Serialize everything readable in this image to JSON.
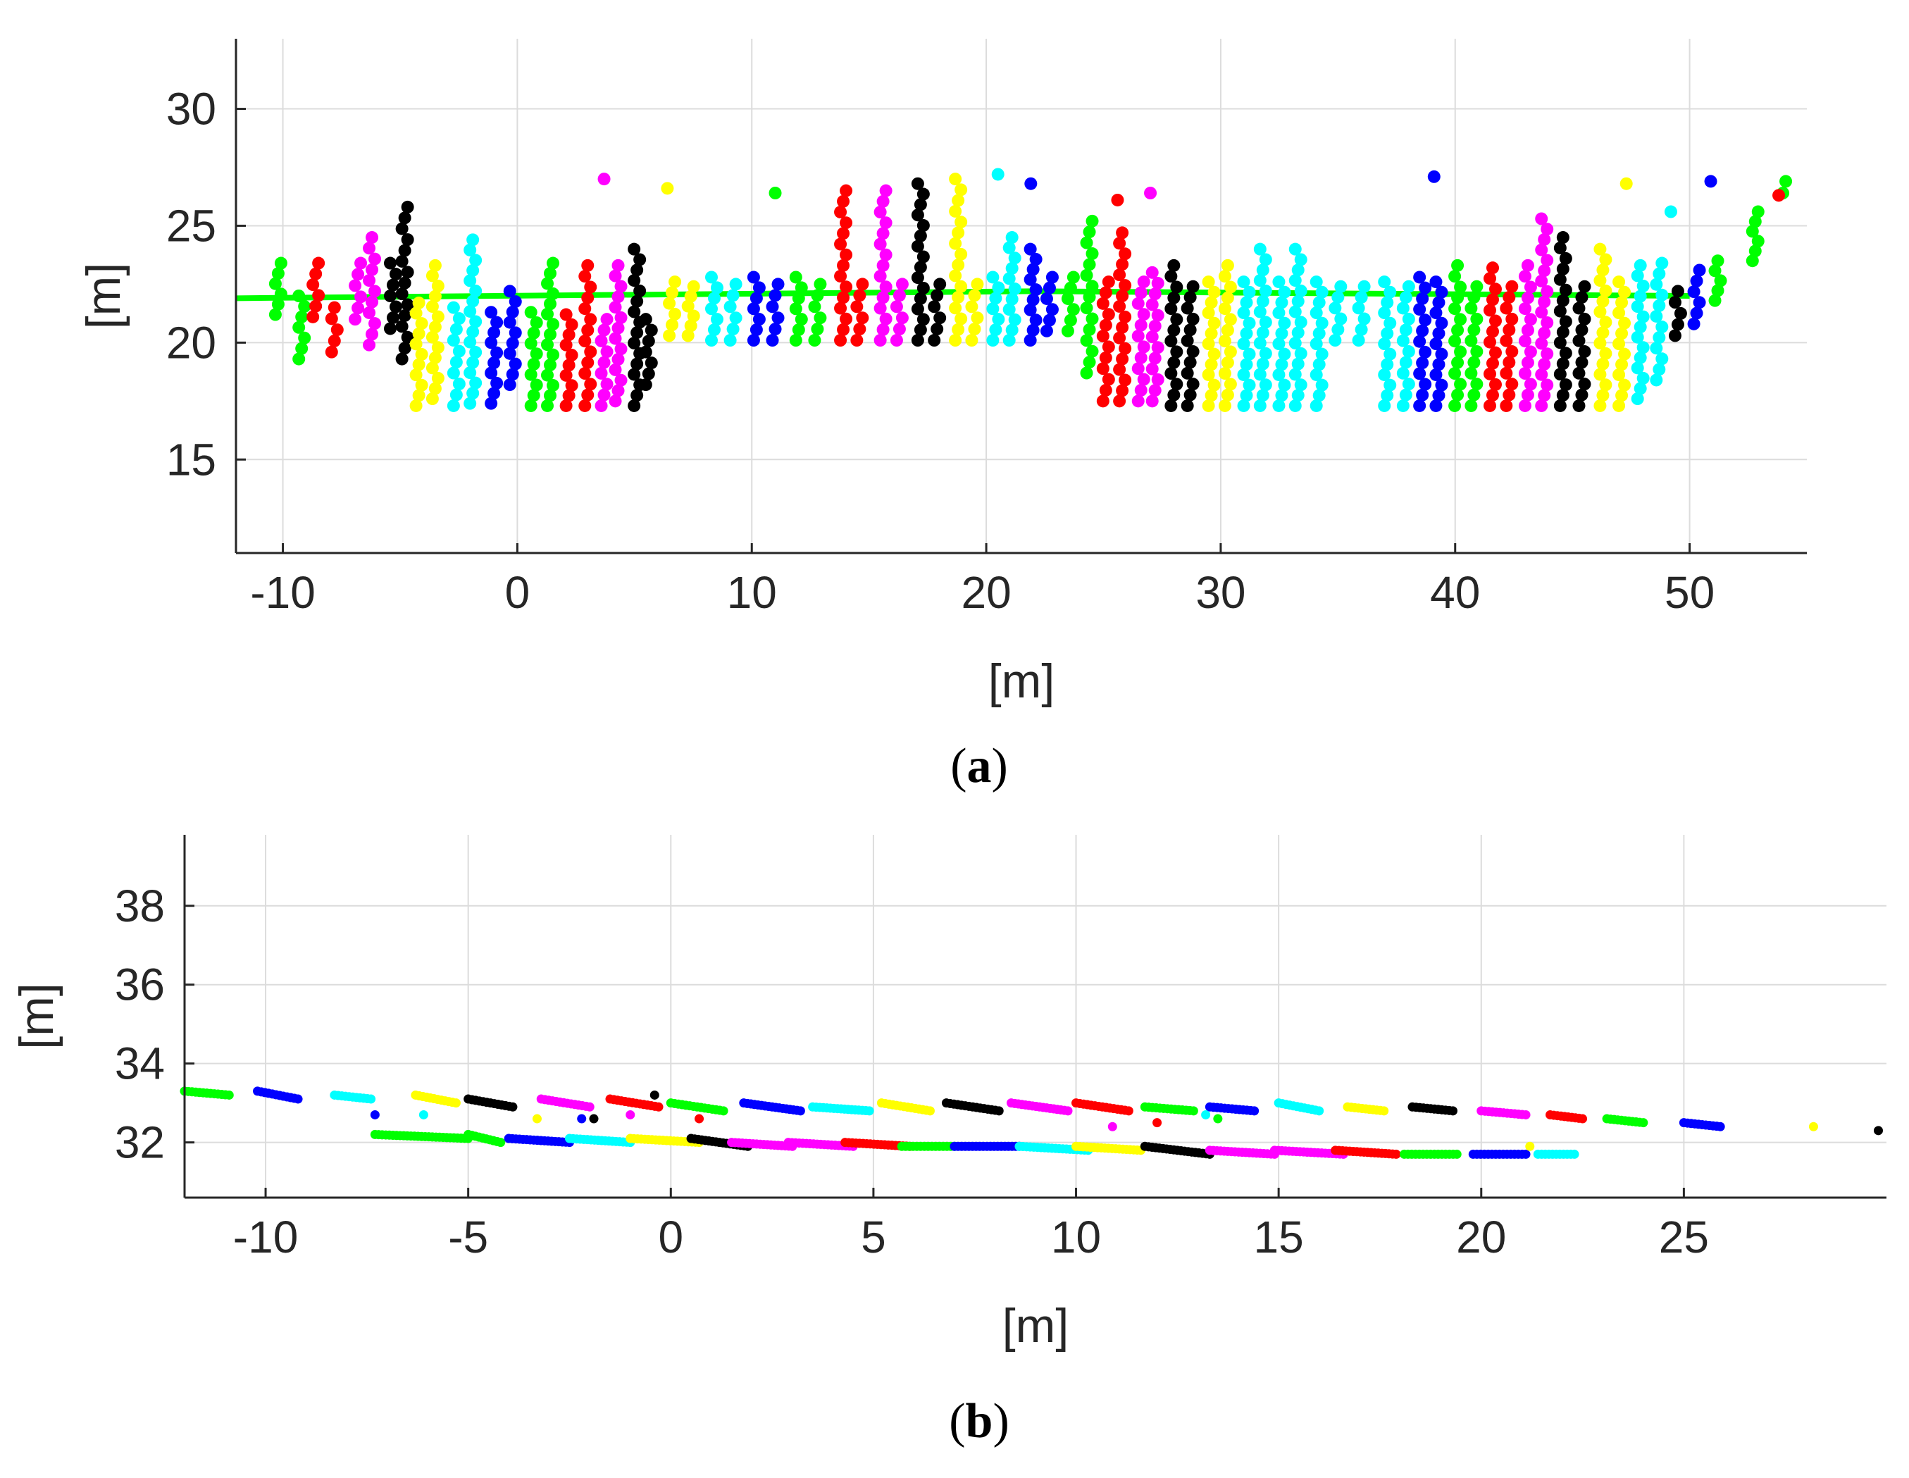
{
  "colors": {
    "black": "#000000",
    "red": "#ff0000",
    "magenta": "#ff00ff",
    "yellow": "#ffff00",
    "cyan": "#00ffff",
    "blue": "#0000ff",
    "green": "#00ff00"
  },
  "chart_data": [
    {
      "type": "scatter",
      "caption": "(a)",
      "caption_letter": "a",
      "title": "",
      "xlabel": "[m]",
      "ylabel": "[m]",
      "xlim": [
        -12,
        55
      ],
      "ylim": [
        11,
        33
      ],
      "xticks": [
        -10,
        0,
        10,
        20,
        30,
        40,
        50
      ],
      "yticks": [
        15,
        20,
        25,
        30
      ],
      "xtick_labels": [
        "-10",
        "0",
        "10",
        "20",
        "30",
        "40",
        "50"
      ],
      "ytick_labels": [
        "15",
        "20",
        "25",
        "30"
      ],
      "grid": true,
      "palette": [
        "black",
        "red",
        "magenta",
        "yellow",
        "cyan",
        "blue",
        "green"
      ],
      "description_series": "scan lines — each series is a vertical/slanted column of points",
      "columns": [
        {
          "x": -10.2,
          "y0": 21.2,
          "y1": 23.4,
          "color": "green"
        },
        {
          "x": -9.2,
          "y0": 19.3,
          "y1": 22.0,
          "color": "green"
        },
        {
          "x": -8.6,
          "y0": 21.1,
          "y1": 23.4,
          "color": "red"
        },
        {
          "x": -7.8,
          "y0": 19.6,
          "y1": 21.5,
          "color": "red"
        },
        {
          "x": -6.8,
          "y0": 21.0,
          "y1": 23.4,
          "color": "magenta"
        },
        {
          "x": -6.2,
          "y0": 19.9,
          "y1": 24.5,
          "color": "magenta"
        },
        {
          "x": -5.3,
          "y0": 20.6,
          "y1": 23.4,
          "color": "black"
        },
        {
          "x": -4.8,
          "y0": 19.3,
          "y1": 25.8,
          "color": "black"
        },
        {
          "x": -4.2,
          "y0": 17.3,
          "y1": 21.7,
          "color": "yellow"
        },
        {
          "x": -3.5,
          "y0": 17.6,
          "y1": 23.3,
          "color": "yellow"
        },
        {
          "x": -2.6,
          "y0": 17.3,
          "y1": 21.5,
          "color": "cyan"
        },
        {
          "x": -1.9,
          "y0": 17.4,
          "y1": 24.4,
          "color": "cyan"
        },
        {
          "x": -1.0,
          "y0": 17.4,
          "y1": 21.3,
          "color": "blue"
        },
        {
          "x": -0.2,
          "y0": 18.2,
          "y1": 22.2,
          "color": "blue"
        },
        {
          "x": 0.7,
          "y0": 17.3,
          "y1": 21.3,
          "color": "green"
        },
        {
          "x": 1.4,
          "y0": 17.3,
          "y1": 23.4,
          "color": "green"
        },
        {
          "x": 2.2,
          "y0": 17.3,
          "y1": 21.2,
          "color": "red"
        },
        {
          "x": 3.0,
          "y0": 17.3,
          "y1": 23.3,
          "color": "red"
        },
        {
          "x": 3.7,
          "y0": 17.3,
          "y1": 21.0,
          "color": "magenta"
        },
        {
          "x": 4.3,
          "y0": 17.5,
          "y1": 23.3,
          "color": "magenta"
        },
        {
          "x": 5.1,
          "y0": 17.3,
          "y1": 24.0,
          "color": "black"
        },
        {
          "x": 5.6,
          "y0": 18.2,
          "y1": 21.0,
          "color": "black"
        },
        {
          "x": 6.6,
          "y0": 20.3,
          "y1": 22.6,
          "color": "yellow"
        },
        {
          "x": 7.4,
          "y0": 20.3,
          "y1": 22.4,
          "color": "yellow"
        },
        {
          "x": 8.4,
          "y0": 20.1,
          "y1": 22.8,
          "color": "cyan"
        },
        {
          "x": 9.2,
          "y0": 20.1,
          "y1": 22.5,
          "color": "cyan"
        },
        {
          "x": 10.2,
          "y0": 20.1,
          "y1": 22.8,
          "color": "blue"
        },
        {
          "x": 11.0,
          "y0": 20.1,
          "y1": 22.5,
          "color": "blue"
        },
        {
          "x": 12.0,
          "y0": 20.1,
          "y1": 22.8,
          "color": "green"
        },
        {
          "x": 12.8,
          "y0": 20.1,
          "y1": 22.5,
          "color": "green"
        },
        {
          "x": 13.9,
          "y0": 20.1,
          "y1": 26.5,
          "color": "red"
        },
        {
          "x": 14.6,
          "y0": 20.1,
          "y1": 22.5,
          "color": "red"
        },
        {
          "x": 15.6,
          "y0": 20.1,
          "y1": 26.5,
          "color": "magenta"
        },
        {
          "x": 16.3,
          "y0": 20.1,
          "y1": 22.5,
          "color": "magenta"
        },
        {
          "x": 17.2,
          "y0": 20.1,
          "y1": 26.8,
          "color": "black"
        },
        {
          "x": 17.9,
          "y0": 20.1,
          "y1": 22.5,
          "color": "black"
        },
        {
          "x": 18.8,
          "y0": 20.1,
          "y1": 27.0,
          "color": "yellow"
        },
        {
          "x": 19.5,
          "y0": 20.1,
          "y1": 22.5,
          "color": "yellow"
        },
        {
          "x": 20.4,
          "y0": 20.1,
          "y1": 22.8,
          "color": "cyan"
        },
        {
          "x": 21.1,
          "y0": 20.1,
          "y1": 24.5,
          "color": "cyan"
        },
        {
          "x": 22.0,
          "y0": 20.1,
          "y1": 24.0,
          "color": "blue"
        },
        {
          "x": 22.7,
          "y0": 20.5,
          "y1": 22.8,
          "color": "blue"
        },
        {
          "x": 23.6,
          "y0": 20.5,
          "y1": 22.8,
          "color": "green"
        },
        {
          "x": 24.4,
          "y0": 18.7,
          "y1": 25.2,
          "color": "green"
        },
        {
          "x": 25.1,
          "y0": 17.5,
          "y1": 22.6,
          "color": "red"
        },
        {
          "x": 25.8,
          "y0": 17.5,
          "y1": 24.7,
          "color": "red"
        },
        {
          "x": 26.6,
          "y0": 17.5,
          "y1": 22.6,
          "color": "magenta"
        },
        {
          "x": 27.2,
          "y0": 17.5,
          "y1": 23.0,
          "color": "magenta"
        },
        {
          "x": 28.0,
          "y0": 17.3,
          "y1": 23.3,
          "color": "black"
        },
        {
          "x": 28.7,
          "y0": 17.3,
          "y1": 22.4,
          "color": "black"
        },
        {
          "x": 29.6,
          "y0": 17.3,
          "y1": 22.6,
          "color": "yellow"
        },
        {
          "x": 30.3,
          "y0": 17.3,
          "y1": 23.3,
          "color": "yellow"
        },
        {
          "x": 31.1,
          "y0": 17.3,
          "y1": 22.6,
          "color": "cyan"
        },
        {
          "x": 31.8,
          "y0": 17.3,
          "y1": 24.0,
          "color": "cyan"
        },
        {
          "x": 32.6,
          "y0": 17.3,
          "y1": 22.6,
          "color": "cyan"
        },
        {
          "x": 33.3,
          "y0": 17.3,
          "y1": 24.0,
          "color": "cyan"
        },
        {
          "x": 34.2,
          "y0": 17.3,
          "y1": 22.6,
          "color": "cyan"
        },
        {
          "x": 35.0,
          "y0": 20.1,
          "y1": 22.4,
          "color": "cyan"
        },
        {
          "x": 36.0,
          "y0": 20.1,
          "y1": 22.4,
          "color": "cyan"
        },
        {
          "x": 37.1,
          "y0": 17.3,
          "y1": 22.6,
          "color": "cyan"
        },
        {
          "x": 37.9,
          "y0": 17.3,
          "y1": 22.4,
          "color": "cyan"
        },
        {
          "x": 38.6,
          "y0": 17.3,
          "y1": 22.8,
          "color": "blue"
        },
        {
          "x": 39.3,
          "y0": 17.3,
          "y1": 22.6,
          "color": "blue"
        },
        {
          "x": 40.1,
          "y0": 17.3,
          "y1": 23.3,
          "color": "green"
        },
        {
          "x": 40.8,
          "y0": 17.3,
          "y1": 22.4,
          "color": "green"
        },
        {
          "x": 41.6,
          "y0": 17.3,
          "y1": 23.2,
          "color": "red"
        },
        {
          "x": 42.3,
          "y0": 17.3,
          "y1": 22.4,
          "color": "red"
        },
        {
          "x": 43.1,
          "y0": 17.3,
          "y1": 23.3,
          "color": "magenta"
        },
        {
          "x": 43.8,
          "y0": 17.3,
          "y1": 25.3,
          "color": "magenta"
        },
        {
          "x": 44.6,
          "y0": 17.3,
          "y1": 24.5,
          "color": "black"
        },
        {
          "x": 45.4,
          "y0": 17.3,
          "y1": 22.4,
          "color": "black"
        },
        {
          "x": 46.3,
          "y0": 17.3,
          "y1": 24.0,
          "color": "yellow"
        },
        {
          "x": 47.1,
          "y0": 17.3,
          "y1": 22.6,
          "color": "yellow"
        },
        {
          "x": 47.9,
          "y0": 17.6,
          "y1": 23.3,
          "color": "cyan"
        },
        {
          "x": 48.7,
          "y0": 18.4,
          "y1": 23.4,
          "color": "cyan"
        },
        {
          "x": 49.5,
          "y0": 20.3,
          "y1": 22.2,
          "color": "black"
        },
        {
          "x": 50.3,
          "y0": 20.8,
          "y1": 23.1,
          "color": "blue"
        },
        {
          "x": 51.2,
          "y0": 21.8,
          "y1": 23.5,
          "color": "green"
        },
        {
          "x": 52.8,
          "y0": 23.5,
          "y1": 25.6,
          "color": "green"
        },
        {
          "x": 54.1,
          "y0": 26.4,
          "y1": 26.9,
          "color": "green"
        }
      ],
      "outliers": [
        {
          "x": 3.7,
          "y": 27.0,
          "color": "magenta"
        },
        {
          "x": 6.4,
          "y": 26.6,
          "color": "yellow"
        },
        {
          "x": 11.0,
          "y": 26.4,
          "color": "green"
        },
        {
          "x": 20.5,
          "y": 27.2,
          "color": "cyan"
        },
        {
          "x": 21.9,
          "y": 26.8,
          "color": "blue"
        },
        {
          "x": 25.6,
          "y": 26.1,
          "color": "red"
        },
        {
          "x": 27.0,
          "y": 26.4,
          "color": "magenta"
        },
        {
          "x": 39.1,
          "y": 27.1,
          "color": "blue"
        },
        {
          "x": 47.3,
          "y": 26.8,
          "color": "yellow"
        },
        {
          "x": 50.9,
          "y": 26.9,
          "color": "blue"
        },
        {
          "x": 53.8,
          "y": 26.3,
          "color": "red"
        },
        {
          "x": 49.2,
          "y": 25.6,
          "color": "cyan"
        }
      ],
      "trajectory": {
        "x": [
          -12,
          22,
          50
        ],
        "y": [
          21.9,
          22.2,
          22.0
        ]
      }
    },
    {
      "type": "scatter",
      "caption": "(b)",
      "caption_letter": "b",
      "title": "",
      "xlabel": "[m]",
      "ylabel": "[m]",
      "xlim": [
        -12,
        30
      ],
      "ylim": [
        30.6,
        39.8
      ],
      "xticks": [
        -10,
        -5,
        0,
        5,
        10,
        15,
        20,
        25
      ],
      "yticks": [
        32,
        34,
        36,
        38
      ],
      "xtick_labels": [
        "-10",
        "-5",
        "0",
        "5",
        "10",
        "15",
        "20",
        "25"
      ],
      "ytick_labels": [
        "32",
        "34",
        "36",
        "38"
      ],
      "grid": true,
      "palette": [
        "green",
        "blue",
        "cyan",
        "yellow",
        "black",
        "magenta",
        "red"
      ],
      "upper_segments": [
        {
          "x0": -12.0,
          "x1": -10.9,
          "y0": 33.3,
          "y1": 33.2,
          "color": "green"
        },
        {
          "x0": -10.2,
          "x1": -9.2,
          "y0": 33.3,
          "y1": 33.1,
          "color": "blue"
        },
        {
          "x0": -8.3,
          "x1": -7.4,
          "y0": 33.2,
          "y1": 33.1,
          "color": "cyan"
        },
        {
          "x0": -6.3,
          "x1": -5.3,
          "y0": 33.2,
          "y1": 33.0,
          "color": "yellow"
        },
        {
          "x0": -5.0,
          "x1": -3.9,
          "y0": 33.1,
          "y1": 32.9,
          "color": "black"
        },
        {
          "x0": -3.2,
          "x1": -2.0,
          "y0": 33.1,
          "y1": 32.9,
          "color": "magenta"
        },
        {
          "x0": -1.5,
          "x1": -0.3,
          "y0": 33.1,
          "y1": 32.9,
          "color": "red"
        },
        {
          "x0": 0.0,
          "x1": 1.3,
          "y0": 33.0,
          "y1": 32.8,
          "color": "green"
        },
        {
          "x0": 1.8,
          "x1": 3.2,
          "y0": 33.0,
          "y1": 32.8,
          "color": "blue"
        },
        {
          "x0": 3.5,
          "x1": 4.9,
          "y0": 32.9,
          "y1": 32.8,
          "color": "cyan"
        },
        {
          "x0": 5.2,
          "x1": 6.4,
          "y0": 33.0,
          "y1": 32.8,
          "color": "yellow"
        },
        {
          "x0": 6.8,
          "x1": 8.1,
          "y0": 33.0,
          "y1": 32.8,
          "color": "black"
        },
        {
          "x0": 8.4,
          "x1": 9.8,
          "y0": 33.0,
          "y1": 32.8,
          "color": "magenta"
        },
        {
          "x0": 10.0,
          "x1": 11.3,
          "y0": 33.0,
          "y1": 32.8,
          "color": "red"
        },
        {
          "x0": 11.7,
          "x1": 12.9,
          "y0": 32.9,
          "y1": 32.8,
          "color": "green"
        },
        {
          "x0": 13.3,
          "x1": 14.4,
          "y0": 32.9,
          "y1": 32.8,
          "color": "blue"
        },
        {
          "x0": 15.0,
          "x1": 16.0,
          "y0": 33.0,
          "y1": 32.8,
          "color": "cyan"
        },
        {
          "x0": 16.7,
          "x1": 17.6,
          "y0": 32.9,
          "y1": 32.8,
          "color": "yellow"
        },
        {
          "x0": 18.3,
          "x1": 19.3,
          "y0": 32.9,
          "y1": 32.8,
          "color": "black"
        },
        {
          "x0": 20.0,
          "x1": 21.1,
          "y0": 32.8,
          "y1": 32.7,
          "color": "magenta"
        },
        {
          "x0": 21.7,
          "x1": 22.5,
          "y0": 32.7,
          "y1": 32.6,
          "color": "red"
        },
        {
          "x0": 23.1,
          "x1": 24.0,
          "y0": 32.6,
          "y1": 32.5,
          "color": "green"
        },
        {
          "x0": 25.0,
          "x1": 25.9,
          "y0": 32.5,
          "y1": 32.4,
          "color": "blue"
        }
      ],
      "lower_segments": [
        {
          "x0": -7.3,
          "x1": -5.0,
          "y0": 32.2,
          "y1": 32.1,
          "color": "green"
        },
        {
          "x0": -5.0,
          "x1": -4.2,
          "y0": 32.2,
          "y1": 32.0,
          "color": "green"
        },
        {
          "x0": -4.0,
          "x1": -2.5,
          "y0": 32.1,
          "y1": 32.0,
          "color": "blue"
        },
        {
          "x0": -2.5,
          "x1": -1.0,
          "y0": 32.1,
          "y1": 32.0,
          "color": "cyan"
        },
        {
          "x0": -1.0,
          "x1": 0.7,
          "y0": 32.1,
          "y1": 32.0,
          "color": "yellow"
        },
        {
          "x0": 0.5,
          "x1": 1.9,
          "y0": 32.1,
          "y1": 31.9,
          "color": "black"
        },
        {
          "x0": 1.5,
          "x1": 3.0,
          "y0": 32.0,
          "y1": 31.9,
          "color": "magenta"
        },
        {
          "x0": 2.9,
          "x1": 4.5,
          "y0": 32.0,
          "y1": 31.9,
          "color": "magenta"
        },
        {
          "x0": 4.3,
          "x1": 5.9,
          "y0": 32.0,
          "y1": 31.9,
          "color": "red"
        },
        {
          "x0": 5.7,
          "x1": 7.0,
          "y0": 31.9,
          "y1": 31.9,
          "color": "green"
        },
        {
          "x0": 7.0,
          "x1": 8.6,
          "y0": 31.9,
          "y1": 31.9,
          "color": "blue"
        },
        {
          "x0": 8.6,
          "x1": 10.3,
          "y0": 31.9,
          "y1": 31.8,
          "color": "cyan"
        },
        {
          "x0": 10.0,
          "x1": 11.6,
          "y0": 31.9,
          "y1": 31.8,
          "color": "yellow"
        },
        {
          "x0": 11.7,
          "x1": 13.3,
          "y0": 31.9,
          "y1": 31.7,
          "color": "black"
        },
        {
          "x0": 13.3,
          "x1": 14.9,
          "y0": 31.8,
          "y1": 31.7,
          "color": "magenta"
        },
        {
          "x0": 14.9,
          "x1": 16.6,
          "y0": 31.8,
          "y1": 31.7,
          "color": "magenta"
        },
        {
          "x0": 16.4,
          "x1": 17.9,
          "y0": 31.8,
          "y1": 31.7,
          "color": "red"
        },
        {
          "x0": 18.1,
          "x1": 19.4,
          "y0": 31.7,
          "y1": 31.7,
          "color": "green"
        },
        {
          "x0": 19.8,
          "x1": 21.1,
          "y0": 31.7,
          "y1": 31.7,
          "color": "blue"
        },
        {
          "x0": 21.4,
          "x1": 22.3,
          "y0": 31.7,
          "y1": 31.7,
          "color": "cyan"
        }
      ],
      "outliers": [
        {
          "x": -7.3,
          "y": 32.7,
          "color": "blue"
        },
        {
          "x": -6.1,
          "y": 32.7,
          "color": "cyan"
        },
        {
          "x": -3.3,
          "y": 32.6,
          "color": "yellow"
        },
        {
          "x": -2.2,
          "y": 32.6,
          "color": "blue"
        },
        {
          "x": -1.9,
          "y": 32.6,
          "color": "black"
        },
        {
          "x": -1.0,
          "y": 32.7,
          "color": "magenta"
        },
        {
          "x": -0.4,
          "y": 33.2,
          "color": "black"
        },
        {
          "x": 0.7,
          "y": 32.6,
          "color": "red"
        },
        {
          "x": 12.0,
          "y": 32.5,
          "color": "red"
        },
        {
          "x": 13.2,
          "y": 32.7,
          "color": "cyan"
        },
        {
          "x": 13.5,
          "y": 32.6,
          "color": "green"
        },
        {
          "x": 28.2,
          "y": 32.4,
          "color": "yellow"
        },
        {
          "x": 29.8,
          "y": 32.3,
          "color": "black"
        },
        {
          "x": 21.2,
          "y": 31.9,
          "color": "yellow"
        },
        {
          "x": 10.9,
          "y": 32.4,
          "color": "magenta"
        }
      ]
    }
  ]
}
